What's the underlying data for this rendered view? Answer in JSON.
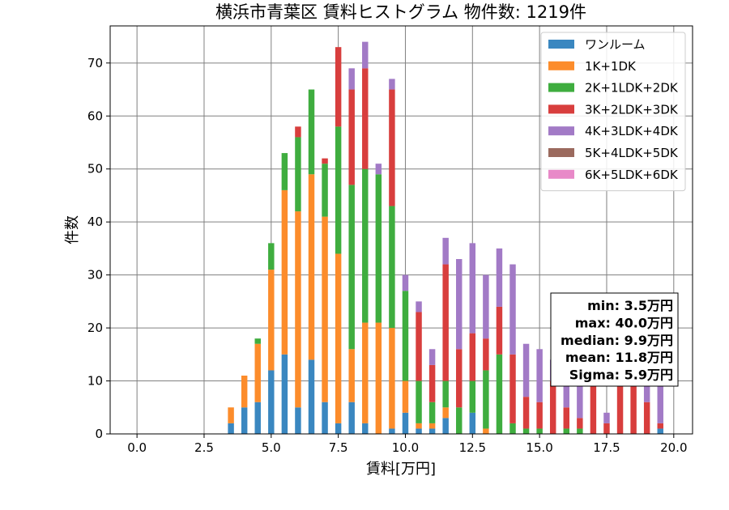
{
  "chart_data": {
    "type": "bar",
    "stacked": true,
    "title": "横浜市青葉区 賃料ヒストグラム 物件数: 1219件",
    "xlabel": "賃料[万円]",
    "ylabel": "件数",
    "xlim": [
      -1.0,
      20.7
    ],
    "ylim": [
      0,
      77
    ],
    "xticks": [
      0.0,
      2.5,
      5.0,
      7.5,
      10.0,
      12.5,
      15.0,
      17.5,
      20.0
    ],
    "xtick_labels": [
      "0.0",
      "2.5",
      "5.0",
      "7.5",
      "10.0",
      "12.5",
      "15.0",
      "17.5",
      "20.0"
    ],
    "yticks": [
      0,
      10,
      20,
      30,
      40,
      50,
      60,
      70
    ],
    "ytick_labels": [
      "0",
      "10",
      "20",
      "30",
      "40",
      "50",
      "60",
      "70"
    ],
    "grid": true,
    "legend_position": "top-right",
    "bin_width": 0.25,
    "bin_starts": [
      3.375,
      3.625,
      3.875,
      4.125,
      4.375,
      4.625,
      4.875,
      5.125,
      5.375,
      5.625,
      5.875,
      6.125,
      6.375,
      6.625,
      6.875,
      7.125,
      7.375,
      7.625,
      7.875,
      8.125,
      8.375,
      8.625,
      8.875,
      9.125,
      9.375,
      9.625,
      9.875,
      10.125,
      10.375,
      10.625,
      10.875,
      11.125,
      11.375,
      11.625,
      11.875,
      12.125,
      12.375,
      12.625,
      12.875,
      13.125,
      13.375,
      13.625,
      13.875,
      14.125,
      14.375,
      14.625,
      14.875,
      15.125,
      15.375,
      15.625,
      15.875,
      16.125,
      16.375,
      16.625,
      16.875,
      17.125,
      17.375,
      17.625,
      17.875,
      18.125,
      18.375,
      18.625,
      18.875,
      19.125,
      19.375
    ],
    "series": [
      {
        "name": "ワンルーム",
        "color": "#3a87c0",
        "values": [
          2,
          0,
          5,
          0,
          6,
          0,
          12,
          0,
          15,
          0,
          5,
          0,
          14,
          0,
          6,
          0,
          2,
          0,
          6,
          0,
          2,
          0,
          0,
          0,
          1,
          0,
          4,
          0,
          1,
          0,
          1,
          0,
          3,
          0,
          0,
          0,
          4,
          0,
          0,
          0,
          0,
          0,
          0,
          0,
          0,
          0,
          0,
          0,
          0,
          0,
          0,
          0,
          0,
          0,
          0,
          0,
          0,
          0,
          0,
          0,
          0,
          0,
          0,
          0,
          1
        ]
      },
      {
        "name": "1K+1DK",
        "color": "#fc8c2b",
        "values": [
          3,
          0,
          6,
          0,
          11,
          0,
          19,
          0,
          31,
          0,
          37,
          0,
          35,
          0,
          35,
          0,
          32,
          0,
          10,
          0,
          19,
          0,
          21,
          0,
          19,
          0,
          6,
          0,
          1,
          0,
          1,
          0,
          2,
          0,
          0,
          0,
          0,
          0,
          1,
          0,
          0,
          0,
          0,
          0,
          0,
          0,
          0,
          0,
          0,
          0,
          0,
          0,
          0,
          0,
          0,
          0,
          0,
          0,
          0,
          0,
          0,
          0,
          0,
          0,
          0
        ]
      },
      {
        "name": "2K+1LDK+2DK",
        "color": "#3fad3f",
        "values": [
          0,
          0,
          0,
          0,
          1,
          0,
          5,
          0,
          7,
          0,
          14,
          0,
          16,
          0,
          10,
          0,
          24,
          0,
          31,
          0,
          29,
          0,
          28,
          0,
          23,
          0,
          17,
          0,
          8,
          0,
          4,
          0,
          5,
          0,
          5,
          0,
          6,
          0,
          11,
          0,
          15,
          0,
          2,
          0,
          1,
          0,
          1,
          0,
          0,
          0,
          1,
          0,
          1,
          0,
          0,
          0,
          0,
          0,
          0,
          0,
          0,
          0,
          0,
          0,
          0
        ]
      },
      {
        "name": "3K+2LDK+3DK",
        "color": "#d83e3d",
        "values": [
          0,
          0,
          0,
          0,
          0,
          0,
          0,
          0,
          0,
          0,
          2,
          0,
          0,
          0,
          1,
          0,
          15,
          0,
          18,
          0,
          19,
          0,
          0,
          0,
          22,
          0,
          0,
          0,
          13,
          0,
          7,
          0,
          22,
          0,
          11,
          0,
          9,
          0,
          6,
          0,
          9,
          0,
          13,
          0,
          6,
          0,
          5,
          0,
          10,
          0,
          4,
          0,
          2,
          0,
          9,
          0,
          2,
          0,
          9,
          0,
          9,
          0,
          6,
          0,
          1
        ]
      },
      {
        "name": "4K+3LDK+4DK",
        "color": "#a27ac6",
        "values": [
          0,
          0,
          0,
          0,
          0,
          0,
          0,
          0,
          0,
          0,
          0,
          0,
          0,
          0,
          0,
          0,
          0,
          0,
          4,
          0,
          5,
          0,
          2,
          0,
          2,
          0,
          3,
          0,
          2,
          0,
          3,
          0,
          5,
          0,
          17,
          0,
          17,
          0,
          12,
          0,
          11,
          0,
          17,
          0,
          10,
          0,
          10,
          0,
          4,
          0,
          5,
          0,
          6,
          0,
          3,
          0,
          2,
          0,
          2,
          0,
          1,
          0,
          3,
          0,
          7
        ]
      },
      {
        "name": "5K+4LDK+5DK",
        "color": "#9b6a5e",
        "values": []
      },
      {
        "name": "6K+5LDK+6DK",
        "color": "#e889c8",
        "values": []
      }
    ],
    "annotation_lines": [
      "min: 3.5万円",
      "max: 40.0万円",
      "median: 9.9万円",
      "mean: 11.8万円",
      "Sigma: 5.9万円"
    ],
    "annotation_position": "right"
  }
}
